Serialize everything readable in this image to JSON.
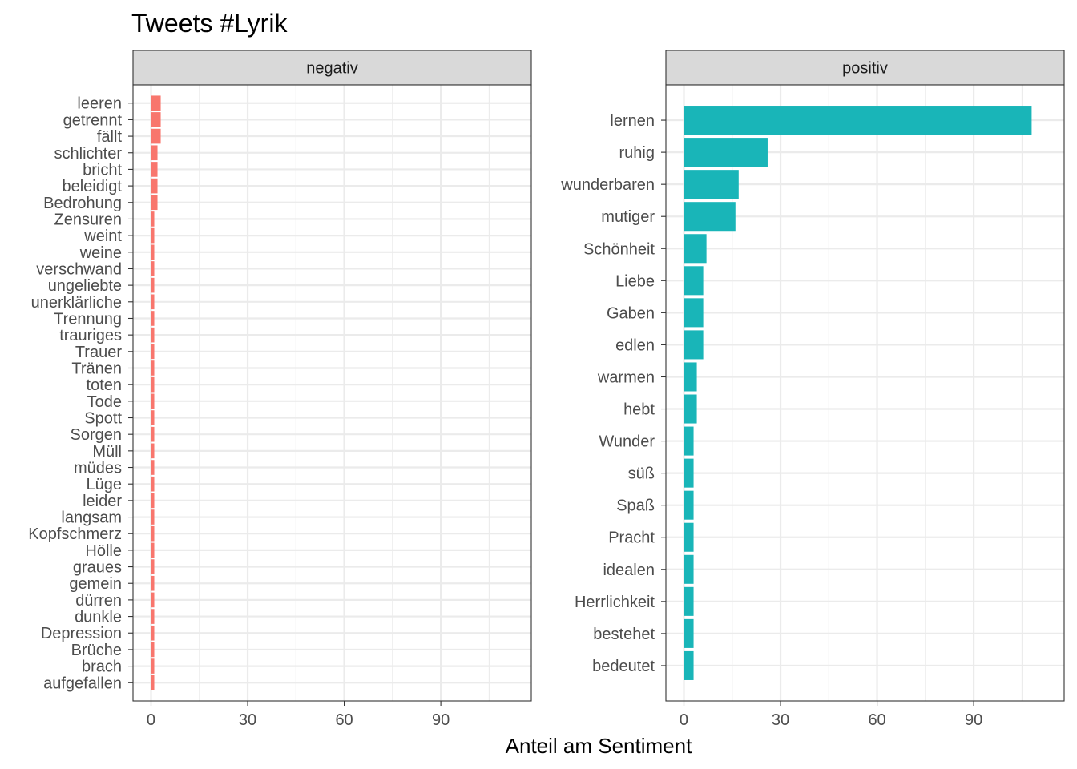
{
  "chart_data": {
    "type": "bar",
    "title": "Tweets #Lyrik",
    "xlabel": "Anteil am Sentiment",
    "ylabel": "",
    "orientation": "horizontal",
    "xlim": [
      0,
      110
    ],
    "x_ticks": [
      "0",
      "30",
      "60",
      "90"
    ],
    "grid": true,
    "panels": [
      {
        "label": "negativ",
        "color": "#F8766D",
        "categories": [
          "leeren",
          "getrennt",
          "fällt",
          "schlichter",
          "bricht",
          "beleidigt",
          "Bedrohung",
          "Zensuren",
          "weint",
          "weine",
          "verschwand",
          "ungeliebte",
          "unerklärliche",
          "Trennung",
          "trauriges",
          "Trauer",
          "Tränen",
          "toten",
          "Tode",
          "Spott",
          "Sorgen",
          "Müll",
          "müdes",
          "Lüge",
          "leider",
          "langsam",
          "Kopfschmerz",
          "Hölle",
          "graues",
          "gemein",
          "dürren",
          "dunkle",
          "Depression",
          "Brüche",
          "brach",
          "aufgefallen"
        ],
        "values": [
          3,
          3,
          3,
          2,
          2,
          2,
          2,
          1,
          1,
          1,
          1,
          1,
          1,
          1,
          1,
          1,
          1,
          1,
          1,
          1,
          1,
          1,
          1,
          1,
          1,
          1,
          1,
          1,
          1,
          1,
          1,
          1,
          1,
          1,
          1,
          1
        ]
      },
      {
        "label": "positiv",
        "color": "#19B5B8",
        "categories": [
          "lernen",
          "ruhig",
          "wunderbaren",
          "mutiger",
          "Schönheit",
          "Liebe",
          "Gaben",
          "edlen",
          "warmen",
          "hebt",
          "Wunder",
          "süß",
          "Spaß",
          "Pracht",
          "idealen",
          "Herrlichkeit",
          "bestehet",
          "bedeutet"
        ],
        "values": [
          108,
          26,
          17,
          16,
          7,
          6,
          6,
          6,
          4,
          4,
          3,
          3,
          3,
          3,
          3,
          3,
          3,
          3
        ]
      }
    ]
  }
}
